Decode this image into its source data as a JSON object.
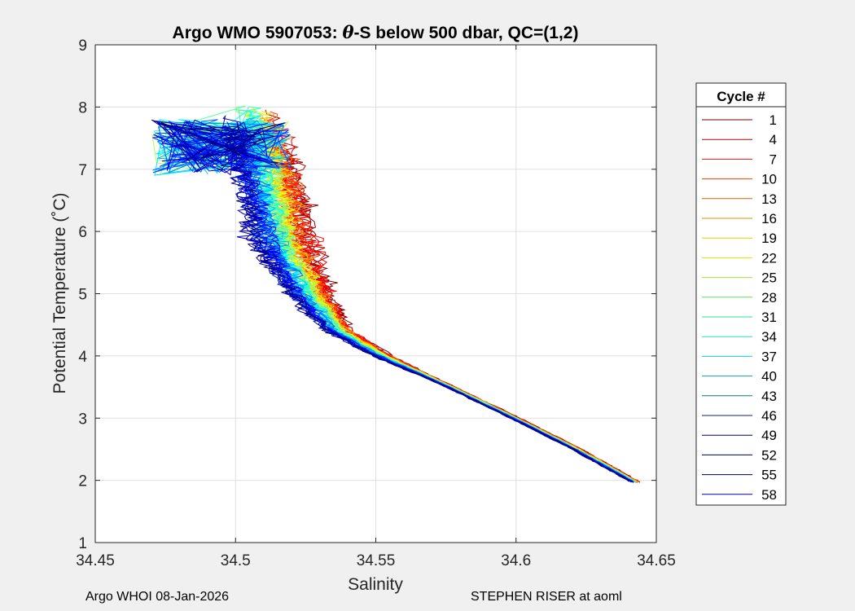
{
  "chart_data": {
    "type": "line",
    "title": "Argo WMO 5907053: θ-S below 500 dbar,  QC=(1,2)",
    "title_parts": [
      "Argo WMO 5907053: ",
      "θ",
      "-S below 500 dbar,  QC=(1,2)"
    ],
    "xlabel": "Salinity",
    "ylabel": "Potential Temperature (˚C)",
    "xlim": [
      34.45,
      34.65
    ],
    "ylim": [
      1,
      9
    ],
    "xticks": [
      34.45,
      34.5,
      34.55,
      34.6,
      34.65
    ],
    "xtick_labels": [
      "34.45",
      "34.5",
      "34.55",
      "34.6",
      "34.65"
    ],
    "yticks": [
      1,
      2,
      3,
      4,
      5,
      6,
      7,
      8,
      9
    ],
    "ytick_labels": [
      "1",
      "2",
      "3",
      "4",
      "5",
      "6",
      "7",
      "8",
      "9"
    ],
    "grid": true,
    "legend": {
      "title": "Cycle #",
      "placement": "outside-right",
      "entries": [
        "1",
        "4",
        "7",
        "10",
        "13",
        "16",
        "19",
        "22",
        "25",
        "28",
        "31",
        "34",
        "37",
        "40",
        "43",
        "46",
        "49",
        "52",
        "55",
        "58"
      ],
      "colors": [
        "#800000",
        "#b00000",
        "#e01818",
        "#f04000",
        "#e06000",
        "#e09000",
        "#e8c800",
        "#e0e000",
        "#a8e040",
        "#60e060",
        "#30e090",
        "#20e0c0",
        "#10c8e0",
        "#10a0b0",
        "#008070",
        "#102080",
        "#000070",
        "#000050",
        "#000048",
        "#0000b0"
      ]
    },
    "series_overview": {
      "description": "One theta-S profile per cycle (cycles 1-58); representative spine values",
      "spine": [
        {
          "temp": 1.97,
          "sal": 34.643
        },
        {
          "temp": 2.5,
          "sal": 34.622
        },
        {
          "temp": 3.0,
          "sal": 34.6
        },
        {
          "temp": 3.5,
          "sal": 34.577
        },
        {
          "temp": 4.0,
          "sal": 34.553
        },
        {
          "temp": 4.4,
          "sal": 34.538
        },
        {
          "temp": 5.0,
          "sal": 34.528
        },
        {
          "temp": 5.5,
          "sal": 34.522
        },
        {
          "temp": 6.0,
          "sal": 34.518
        },
        {
          "temp": 6.5,
          "sal": 34.516
        },
        {
          "temp": 7.0,
          "sal": 34.513
        },
        {
          "temp": 7.5,
          "sal": 34.51
        },
        {
          "temp": 8.0,
          "sal": 34.508
        }
      ],
      "early_cycle_offset": 0.007,
      "late_cycle_offset": -0.012
    }
  },
  "footer": {
    "left": "Argo WHOI 08-Jan-2026",
    "right": "STEPHEN RISER at aoml"
  }
}
